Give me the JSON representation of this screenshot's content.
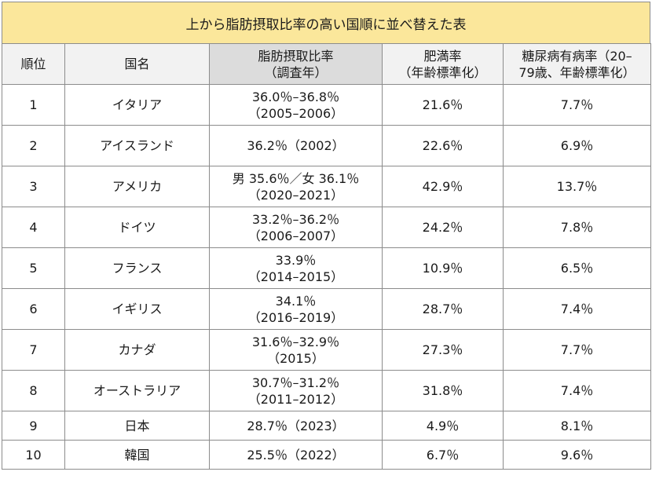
{
  "title": "上から脂肪摂取比率の高い国順に並べ替えた表",
  "headers": {
    "rank": "順位",
    "country": "国名",
    "fat_line1": "脂肪摂取比率",
    "fat_line2": "（調査年）",
    "obesity_line1": "肥満率",
    "obesity_line2": "（年齢標準化）",
    "diabetes_line1": "糖尿病有病率（20–",
    "diabetes_line2": "79歳、年齢標準化）"
  },
  "rows": [
    {
      "rank": "1",
      "country": "イタリア",
      "fat1": "36.0％–36.8％",
      "fat2": "（2005–2006）",
      "obesity": "21.6％",
      "diabetes": "7.7％"
    },
    {
      "rank": "2",
      "country": "アイスランド",
      "fat1": "36.2％（2002）",
      "fat2": "",
      "obesity": "22.6％",
      "diabetes": "6.9％"
    },
    {
      "rank": "3",
      "country": "アメリカ",
      "fat1": "男 35.6％／女 36.1％",
      "fat2": "（2020–2021）",
      "obesity": "42.9％",
      "diabetes": "13.7％"
    },
    {
      "rank": "4",
      "country": "ドイツ",
      "fat1": "33.2％–36.2％",
      "fat2": "（2006–2007）",
      "obesity": "24.2％",
      "diabetes": "7.8％"
    },
    {
      "rank": "5",
      "country": "フランス",
      "fat1": "33.9％",
      "fat2": "（2014–2015）",
      "obesity": "10.9％",
      "diabetes": "6.5％"
    },
    {
      "rank": "6",
      "country": "イギリス",
      "fat1": "34.1％",
      "fat2": "（2016–2019）",
      "obesity": "28.7％",
      "diabetes": "7.4％"
    },
    {
      "rank": "7",
      "country": "カナダ",
      "fat1": "31.6％–32.9％",
      "fat2": "（2015）",
      "obesity": "27.3％",
      "diabetes": "7.7％"
    },
    {
      "rank": "8",
      "country": "オーストラリア",
      "fat1": "30.7％–31.2％",
      "fat2": "（2011–2012）",
      "obesity": "31.8％",
      "diabetes": "7.4％"
    },
    {
      "rank": "9",
      "country": "日本",
      "fat1": "28.7％（2023）",
      "fat2": "",
      "obesity": "4.9％",
      "diabetes": "8.1％"
    },
    {
      "rank": "10",
      "country": "韓国",
      "fat1": "25.5％（2022）",
      "fat2": "",
      "obesity": "6.7％",
      "diabetes": "9.6％"
    }
  ]
}
